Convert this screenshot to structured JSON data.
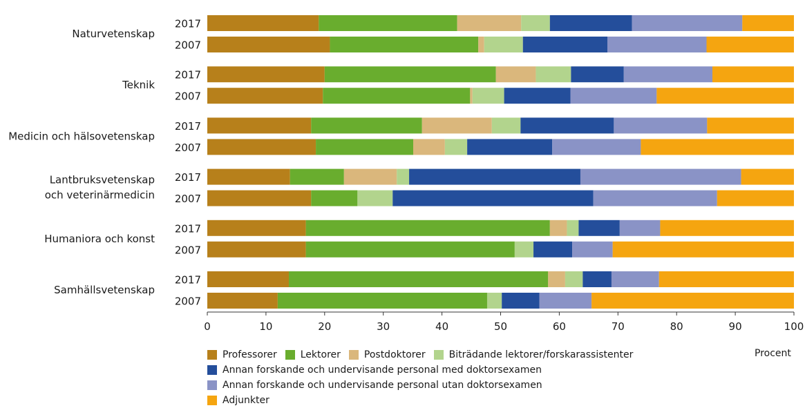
{
  "chart_data": {
    "type": "bar",
    "orientation": "horizontal",
    "stacked": true,
    "xlim": [
      0,
      100
    ],
    "x_ticks": [
      "0",
      "10",
      "20",
      "30",
      "40",
      "50",
      "60",
      "70",
      "80",
      "90",
      "100"
    ],
    "xlabel": "Procent",
    "grid": false,
    "legend_position": "bottom-left",
    "categories": [
      {
        "label": "Naturvetenskap",
        "bars": [
          {
            "year": "2017",
            "values": [
              19,
              23.6,
              10.9,
              4.9,
              14,
              18.8,
              8.8
            ]
          },
          {
            "year": "2007",
            "values": [
              20.9,
              25.3,
              1,
              6.6,
              14.4,
              16.9,
              14.9
            ]
          }
        ]
      },
      {
        "label": "Teknik",
        "bars": [
          {
            "year": "2017",
            "values": [
              20,
              29.2,
              6.8,
              6,
              9,
              15.1,
              13.9
            ]
          },
          {
            "year": "2007",
            "values": [
              19.7,
              25.1,
              0.4,
              5.4,
              11.3,
              14.7,
              23.4
            ]
          }
        ]
      },
      {
        "label": "Medicin och hälsovetenskap",
        "bars": [
          {
            "year": "2017",
            "values": [
              17.7,
              18.9,
              11.9,
              4.9,
              15.9,
              15.9,
              14.8
            ]
          },
          {
            "year": "2007",
            "values": [
              18.5,
              16.6,
              5.4,
              3.8,
              14.5,
              15.1,
              26.1
            ]
          }
        ]
      },
      {
        "label": "Lantbruksvetenskap och veterinärmedicin",
        "bars": [
          {
            "year": "2017",
            "values": [
              14.1,
              9.2,
              9,
              2.1,
              29.2,
              27.4,
              9
            ]
          },
          {
            "year": "2007",
            "values": [
              17.7,
              7.9,
              0,
              6,
              34.2,
              21.1,
              13.1
            ]
          }
        ]
      },
      {
        "label": "Humaniora och konst",
        "bars": [
          {
            "year": "2017",
            "values": [
              16.8,
              41.6,
              2.9,
              2,
              7,
              6.9,
              22.8
            ]
          },
          {
            "year": "2007",
            "values": [
              16.8,
              35.6,
              0,
              3.2,
              6.6,
              6.9,
              30.9
            ]
          }
        ]
      },
      {
        "label": "Samhällsvetenskap",
        "bars": [
          {
            "year": "2017",
            "values": [
              13.9,
              44.2,
              2.9,
              3,
              4.9,
              8.1,
              23
            ]
          },
          {
            "year": "2007",
            "values": [
              12,
              35.7,
              0,
              2.5,
              6.4,
              8.9,
              34.5
            ]
          }
        ]
      }
    ],
    "series": [
      {
        "name": "Professorer",
        "color": "#b7801b"
      },
      {
        "name": "Lektorer",
        "color": "#69ad2e"
      },
      {
        "name": "Postdoktorer",
        "color": "#dab77c"
      },
      {
        "name": "Biträdande lektorer/forskarassistenter",
        "color": "#b2d48d"
      },
      {
        "name": "Annan forskande och undervisande personal med doktorsexamen",
        "color": "#244e9b"
      },
      {
        "name": "Annan forskande och undervisande personal utan doktorsexamen",
        "color": "#8a93c6"
      },
      {
        "name": "Adjunkter",
        "color": "#f5a510"
      }
    ]
  }
}
